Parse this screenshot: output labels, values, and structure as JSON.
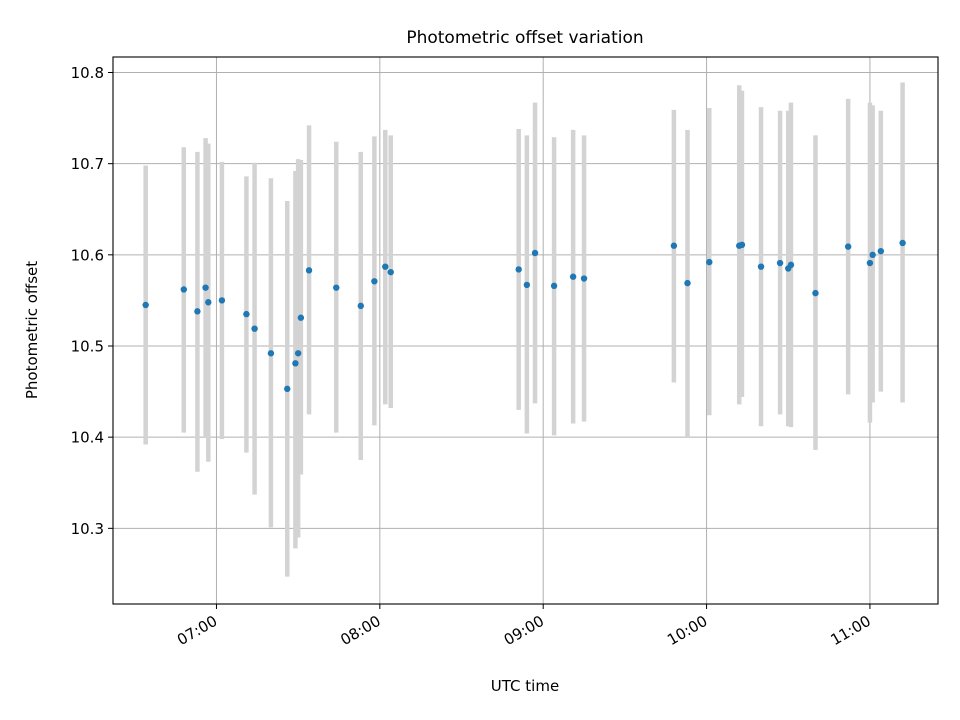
{
  "chart_data": {
    "type": "scatter",
    "title": "Photometric offset variation",
    "xlabel": "UTC time",
    "ylabel": "Photometric offset",
    "x_ticks": [
      "07:00",
      "08:00",
      "09:00",
      "10:00",
      "11:00"
    ],
    "y_ticks": [
      "10.3",
      "10.4",
      "10.5",
      "10.6",
      "10.7",
      "10.8"
    ],
    "xlim": [
      "06:22",
      "11:25"
    ],
    "ylim": [
      10.217,
      10.817
    ],
    "grid": true,
    "colors": {
      "marker": "#1f77b4",
      "errorbar": "#d3d3d3",
      "grid": "#b0b0b0"
    },
    "points": [
      {
        "x": "06:34",
        "y": 10.545,
        "ylo": 10.392,
        "yhi": 10.698
      },
      {
        "x": "06:48",
        "y": 10.562,
        "ylo": 10.405,
        "yhi": 10.718
      },
      {
        "x": "06:53",
        "y": 10.538,
        "ylo": 10.362,
        "yhi": 10.713
      },
      {
        "x": "06:56",
        "y": 10.564,
        "ylo": 10.4,
        "yhi": 10.728
      },
      {
        "x": "06:57",
        "y": 10.548,
        "ylo": 10.373,
        "yhi": 10.722
      },
      {
        "x": "07:02",
        "y": 10.55,
        "ylo": 10.398,
        "yhi": 10.702
      },
      {
        "x": "07:11",
        "y": 10.535,
        "ylo": 10.383,
        "yhi": 10.686
      },
      {
        "x": "07:14",
        "y": 10.519,
        "ylo": 10.337,
        "yhi": 10.701
      },
      {
        "x": "07:20",
        "y": 10.492,
        "ylo": 10.301,
        "yhi": 10.684
      },
      {
        "x": "07:26",
        "y": 10.453,
        "ylo": 10.247,
        "yhi": 10.659
      },
      {
        "x": "07:29",
        "y": 10.481,
        "ylo": 10.278,
        "yhi": 10.692
      },
      {
        "x": "07:30",
        "y": 10.492,
        "ylo": 10.29,
        "yhi": 10.705
      },
      {
        "x": "07:31",
        "y": 10.531,
        "ylo": 10.359,
        "yhi": 10.704
      },
      {
        "x": "07:34",
        "y": 10.583,
        "ylo": 10.425,
        "yhi": 10.742
      },
      {
        "x": "07:44",
        "y": 10.564,
        "ylo": 10.405,
        "yhi": 10.724
      },
      {
        "x": "07:53",
        "y": 10.544,
        "ylo": 10.375,
        "yhi": 10.713
      },
      {
        "x": "07:58",
        "y": 10.571,
        "ylo": 10.413,
        "yhi": 10.73
      },
      {
        "x": "08:02",
        "y": 10.587,
        "ylo": 10.436,
        "yhi": 10.737
      },
      {
        "x": "08:04",
        "y": 10.581,
        "ylo": 10.432,
        "yhi": 10.731
      },
      {
        "x": "08:51",
        "y": 10.584,
        "ylo": 10.43,
        "yhi": 10.738
      },
      {
        "x": "08:54",
        "y": 10.567,
        "ylo": 10.404,
        "yhi": 10.731
      },
      {
        "x": "08:57",
        "y": 10.602,
        "ylo": 10.437,
        "yhi": 10.767
      },
      {
        "x": "09:04",
        "y": 10.566,
        "ylo": 10.402,
        "yhi": 10.729
      },
      {
        "x": "09:11",
        "y": 10.576,
        "ylo": 10.415,
        "yhi": 10.737
      },
      {
        "x": "09:15",
        "y": 10.574,
        "ylo": 10.417,
        "yhi": 10.731
      },
      {
        "x": "09:48",
        "y": 10.61,
        "ylo": 10.46,
        "yhi": 10.759
      },
      {
        "x": "09:53",
        "y": 10.569,
        "ylo": 10.4,
        "yhi": 10.737
      },
      {
        "x": "10:01",
        "y": 10.592,
        "ylo": 10.424,
        "yhi": 10.761
      },
      {
        "x": "10:12",
        "y": 10.61,
        "ylo": 10.436,
        "yhi": 10.786
      },
      {
        "x": "10:13",
        "y": 10.611,
        "ylo": 10.444,
        "yhi": 10.78
      },
      {
        "x": "10:20",
        "y": 10.587,
        "ylo": 10.412,
        "yhi": 10.762
      },
      {
        "x": "10:27",
        "y": 10.591,
        "ylo": 10.425,
        "yhi": 10.758
      },
      {
        "x": "10:30",
        "y": 10.585,
        "ylo": 10.412,
        "yhi": 10.758
      },
      {
        "x": "10:31",
        "y": 10.589,
        "ylo": 10.411,
        "yhi": 10.767
      },
      {
        "x": "10:40",
        "y": 10.558,
        "ylo": 10.386,
        "yhi": 10.731
      },
      {
        "x": "10:52",
        "y": 10.609,
        "ylo": 10.447,
        "yhi": 10.771
      },
      {
        "x": "11:00",
        "y": 10.591,
        "ylo": 10.416,
        "yhi": 10.767
      },
      {
        "x": "11:01",
        "y": 10.6,
        "ylo": 10.438,
        "yhi": 10.764
      },
      {
        "x": "11:04",
        "y": 10.604,
        "ylo": 10.45,
        "yhi": 10.758
      },
      {
        "x": "11:12",
        "y": 10.613,
        "ylo": 10.438,
        "yhi": 10.789
      }
    ]
  }
}
